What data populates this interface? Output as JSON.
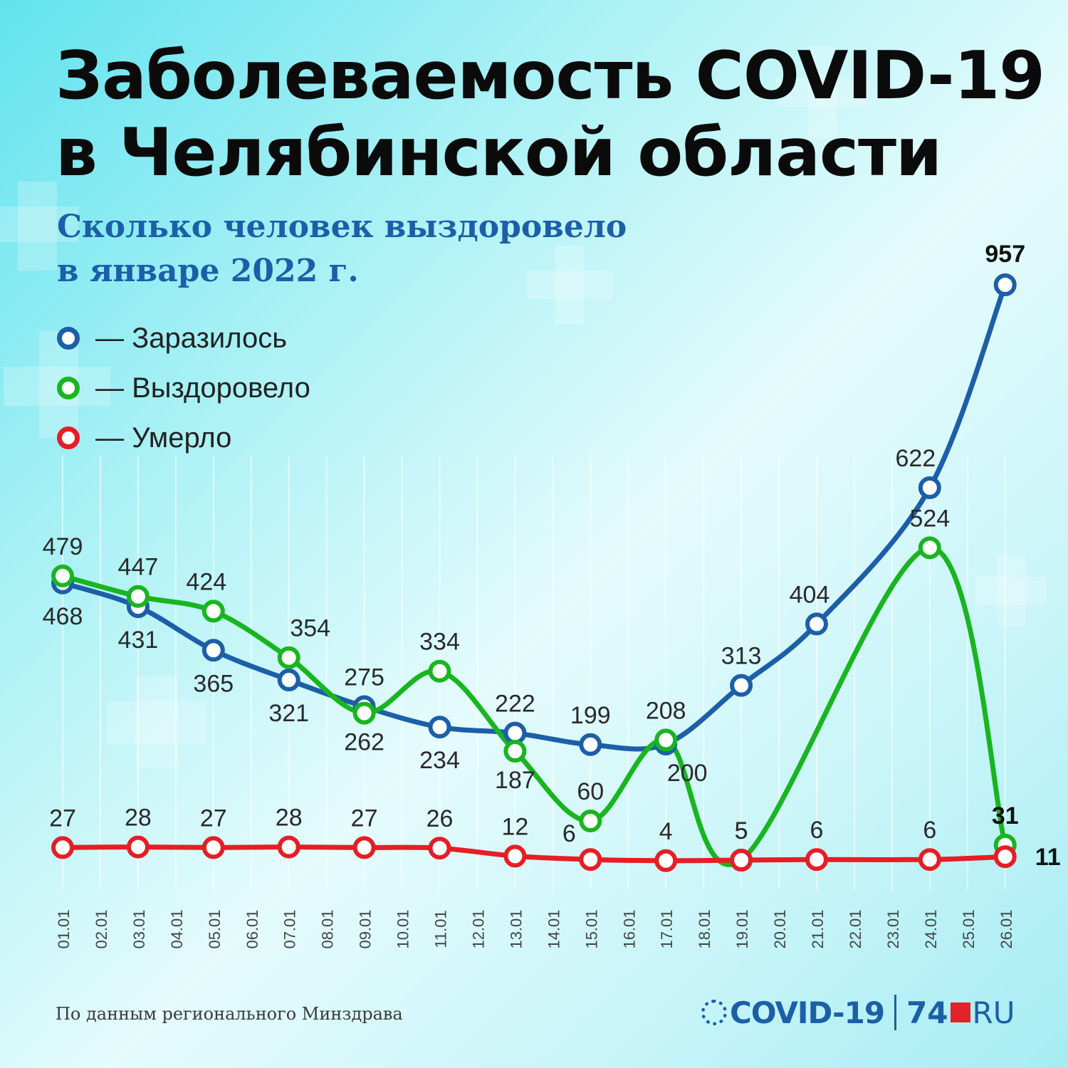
{
  "title_line1": "Заболеваемость COVID-19",
  "title_line2": "в Челябинской области",
  "subtitle_line1": "Сколько человек выздоровело",
  "subtitle_line2": "в январе 2022 г.",
  "legend": [
    {
      "label": "— Заразилось",
      "color": "#1c5fa8"
    },
    {
      "label": "— Выздоровело",
      "color": "#19b520"
    },
    {
      "label": "— Умерло",
      "color": "#e51e26"
    }
  ],
  "source": "По данным регионального Минздрава",
  "logo": {
    "covid": "COVID-19",
    "num": "74",
    "ru": "RU"
  },
  "chart_data": {
    "type": "line",
    "title": "Заболеваемость COVID-19 в Челябинской области",
    "subtitle": "Сколько человек выздоровело в январе 2022 г.",
    "x_tick_labels": [
      "01.01",
      "02.01",
      "03.01",
      "04.01",
      "05.01",
      "06.01",
      "07.01",
      "08.01",
      "09.01",
      "10.01",
      "11.01",
      "12.01",
      "13.01",
      "14.01",
      "15.01",
      "16.01",
      "17.01",
      "18.01",
      "19.01",
      "20.01",
      "21.01",
      "22.01",
      "23.01",
      "24.01",
      "25.01",
      "26.01"
    ],
    "series": [
      {
        "name": "Заразилось",
        "color": "#1c5fa8",
        "points": [
          {
            "x": "01.01",
            "y": 468
          },
          {
            "x": "03.01",
            "y": 431
          },
          {
            "x": "05.01",
            "y": 365
          },
          {
            "x": "07.01",
            "y": 321
          },
          {
            "x": "09.01",
            "y": 275
          },
          {
            "x": "11.01",
            "y": 234
          },
          {
            "x": "13.01",
            "y": 222
          },
          {
            "x": "15.01",
            "y": 199
          },
          {
            "x": "17.01",
            "y": 200
          },
          {
            "x": "19.01",
            "y": 313
          },
          {
            "x": "21.01",
            "y": 404
          },
          {
            "x": "24.01",
            "y": 622
          },
          {
            "x": "26.01",
            "y": 957
          }
        ]
      },
      {
        "name": "Выздоровело",
        "color": "#19b520",
        "points": [
          {
            "x": "01.01",
            "y": 479
          },
          {
            "x": "03.01",
            "y": 447
          },
          {
            "x": "05.01",
            "y": 424
          },
          {
            "x": "07.01",
            "y": 354
          },
          {
            "x": "09.01",
            "y": 262
          },
          {
            "x": "11.01",
            "y": 334
          },
          {
            "x": "13.01",
            "y": 187
          },
          {
            "x": "15.01",
            "y": 60
          },
          {
            "x": "17.01",
            "y": 208
          },
          {
            "x": "19.01",
            "y": 5
          },
          {
            "x": "24.01",
            "y": 524
          },
          {
            "x": "26.01",
            "y": 31
          }
        ]
      },
      {
        "name": "Умерло",
        "color": "#e51e26",
        "points": [
          {
            "x": "01.01",
            "y": 27
          },
          {
            "x": "03.01",
            "y": 28
          },
          {
            "x": "05.01",
            "y": 27
          },
          {
            "x": "07.01",
            "y": 28
          },
          {
            "x": "09.01",
            "y": 27
          },
          {
            "x": "11.01",
            "y": 26
          },
          {
            "x": "13.01",
            "y": 12
          },
          {
            "x": "15.01",
            "y": 6
          },
          {
            "x": "17.01",
            "y": 4
          },
          {
            "x": "19.01",
            "y": 5
          },
          {
            "x": "21.01",
            "y": 6
          },
          {
            "x": "24.01",
            "y": 6
          },
          {
            "x": "26.01",
            "y": 11
          }
        ]
      }
    ],
    "grid": true,
    "legend_position": "top-left"
  }
}
